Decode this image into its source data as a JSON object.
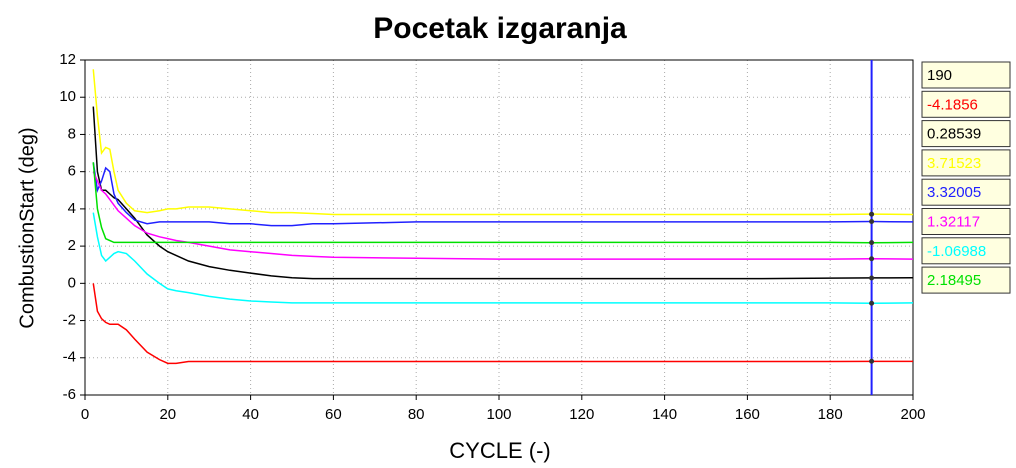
{
  "chart_data": {
    "type": "line",
    "title": "Pocetak izgaranja",
    "x_label": "CYCLE (-)",
    "y_label": "CombustionStart (deg)",
    "x": [
      2,
      3,
      4,
      5,
      6,
      7,
      8,
      10,
      12,
      15,
      18,
      20,
      22,
      25,
      30,
      35,
      40,
      45,
      50,
      55,
      60,
      80,
      100,
      120,
      140,
      160,
      180,
      190,
      200
    ],
    "series": [
      {
        "color": "#ff0000",
        "cursor_value": -4.1856,
        "values": [
          0,
          -1.5,
          -1.9,
          -2.1,
          -2.2,
          -2.2,
          -2.2,
          -2.5,
          -3.0,
          -3.7,
          -4.1,
          -4.3,
          -4.3,
          -4.2,
          -4.2,
          -4.2,
          -4.2,
          -4.2,
          -4.2,
          -4.2,
          -4.2,
          -4.2,
          -4.2,
          -4.2,
          -4.2,
          -4.2,
          -4.2,
          -4.19,
          -4.19
        ]
      },
      {
        "color": "#000000",
        "cursor_value": 0.28539,
        "values": [
          9.5,
          6,
          5,
          5,
          4.8,
          4.6,
          4.5,
          4.0,
          3.5,
          2.6,
          2.0,
          1.7,
          1.5,
          1.2,
          0.9,
          0.7,
          0.55,
          0.4,
          0.3,
          0.25,
          0.25,
          0.25,
          0.25,
          0.25,
          0.25,
          0.25,
          0.28,
          0.29,
          0.3
        ]
      },
      {
        "color": "#ffff00",
        "cursor_value": 3.71523,
        "values": [
          11.5,
          9,
          7,
          7.3,
          7.2,
          6,
          5,
          4.3,
          3.9,
          3.8,
          3.9,
          4.0,
          4.0,
          4.1,
          4.1,
          4.0,
          3.9,
          3.8,
          3.8,
          3.75,
          3.7,
          3.7,
          3.7,
          3.7,
          3.7,
          3.7,
          3.7,
          3.72,
          3.7
        ]
      },
      {
        "color": "#2020ff",
        "cursor_value": 3.32005,
        "values": [
          6.5,
          5,
          5.5,
          6.2,
          6,
          4.8,
          4.3,
          3.8,
          3.4,
          3.2,
          3.3,
          3.3,
          3.3,
          3.3,
          3.3,
          3.2,
          3.2,
          3.1,
          3.1,
          3.2,
          3.2,
          3.3,
          3.3,
          3.3,
          3.3,
          3.3,
          3.3,
          3.32,
          3.3
        ]
      },
      {
        "color": "#ff00ff",
        "cursor_value": 1.32117,
        "values": [
          6,
          5.5,
          5,
          4.8,
          4.5,
          4.2,
          3.9,
          3.5,
          3.1,
          2.7,
          2.5,
          2.4,
          2.3,
          2.2,
          2.0,
          1.8,
          1.7,
          1.6,
          1.5,
          1.45,
          1.4,
          1.35,
          1.3,
          1.3,
          1.3,
          1.3,
          1.3,
          1.32,
          1.3
        ]
      },
      {
        "color": "#00ffff",
        "cursor_value": -1.06988,
        "values": [
          3.8,
          2.5,
          1.5,
          1.2,
          1.4,
          1.6,
          1.7,
          1.6,
          1.2,
          0.5,
          0.0,
          -0.3,
          -0.4,
          -0.5,
          -0.7,
          -0.85,
          -0.95,
          -1.0,
          -1.05,
          -1.05,
          -1.05,
          -1.05,
          -1.05,
          -1.05,
          -1.05,
          -1.05,
          -1.05,
          -1.07,
          -1.05
        ]
      },
      {
        "color": "#00e000",
        "cursor_value": 2.18495,
        "values": [
          6.5,
          4,
          3,
          2.4,
          2.3,
          2.2,
          2.2,
          2.2,
          2.2,
          2.2,
          2.2,
          2.2,
          2.2,
          2.2,
          2.2,
          2.2,
          2.2,
          2.2,
          2.2,
          2.2,
          2.2,
          2.2,
          2.2,
          2.2,
          2.2,
          2.2,
          2.2,
          2.18,
          2.2
        ]
      }
    ],
    "cursor_x": 190,
    "cursor_color": "#2020ff",
    "xlim": [
      0,
      200
    ],
    "xticks": [
      0,
      20,
      40,
      60,
      80,
      100,
      120,
      140,
      160,
      180,
      200
    ],
    "ylim": [
      -6,
      12
    ],
    "yticks": [
      -6,
      -4,
      -2,
      0,
      2,
      4,
      6,
      8,
      10,
      12
    ],
    "grid": true
  }
}
